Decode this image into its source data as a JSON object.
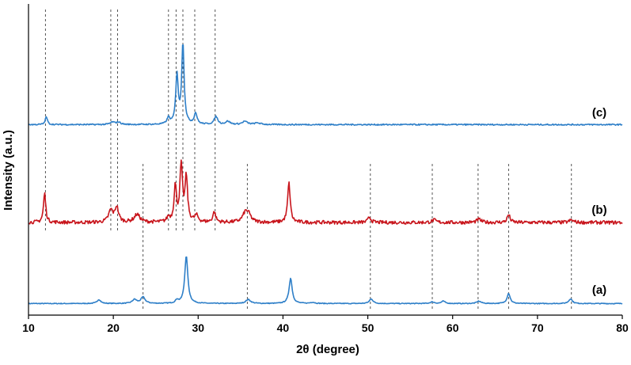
{
  "chart_data": {
    "type": "line",
    "title": "",
    "xlabel": "2θ (degree)",
    "ylabel": "Intensity (a.u.)",
    "xlim": [
      10,
      80
    ],
    "xticks": [
      10,
      20,
      30,
      40,
      50,
      60,
      70,
      80
    ],
    "yticks_shown": false,
    "grid": false,
    "legend": "none",
    "reference_lines": {
      "group_c_b": [
        12.0,
        19.7,
        20.5,
        26.5,
        27.4,
        28.2,
        29.6,
        32.0
      ],
      "group_b_a": [
        23.5,
        35.8,
        50.3,
        57.6,
        63.0,
        66.6,
        74.0
      ]
    },
    "series": [
      {
        "name": "(a)",
        "color": "#2e7fc8",
        "offset": 0,
        "baseline": 1.6,
        "noise": 0.5,
        "peaks": [
          [
            18.3,
            5,
            0.25
          ],
          [
            22.5,
            5,
            0.3
          ],
          [
            23.5,
            8,
            0.3
          ],
          [
            27.5,
            4,
            0.2
          ],
          [
            28.6,
            60,
            0.22
          ],
          [
            35.9,
            5,
            0.35
          ],
          [
            40.9,
            32,
            0.22
          ],
          [
            43.5,
            1.5,
            0.3
          ],
          [
            50.4,
            6,
            0.25
          ],
          [
            57.6,
            2,
            0.3
          ],
          [
            58.9,
            3,
            0.25
          ],
          [
            63.1,
            3,
            0.3
          ],
          [
            66.6,
            13,
            0.22
          ],
          [
            73.9,
            6,
            0.25
          ]
        ]
      },
      {
        "name": "(b)",
        "color": "#c8151c",
        "offset": 102,
        "baseline": 2,
        "noise": 2.2,
        "peaks": [
          [
            11.9,
            37,
            0.16
          ],
          [
            19.7,
            15,
            0.3
          ],
          [
            20.4,
            19,
            0.25
          ],
          [
            22.8,
            10,
            0.4
          ],
          [
            26.5,
            6,
            0.2
          ],
          [
            27.3,
            45,
            0.17
          ],
          [
            28.0,
            71,
            0.18
          ],
          [
            28.6,
            56,
            0.18
          ],
          [
            29.8,
            8,
            0.25
          ],
          [
            31.9,
            13,
            0.2
          ],
          [
            35.6,
            13,
            0.4
          ],
          [
            36.0,
            6,
            0.3
          ],
          [
            40.7,
            50,
            0.18
          ],
          [
            50.2,
            7,
            0.2
          ],
          [
            57.8,
            3,
            0.3
          ],
          [
            63.1,
            4,
            0.3
          ],
          [
            66.6,
            10,
            0.2
          ],
          [
            74.0,
            3,
            0.3
          ]
        ]
      },
      {
        "name": "(c)",
        "color": "#2e7fc8",
        "offset": 226,
        "baseline": 1.6,
        "noise": 0.8,
        "peaks": [
          [
            12.1,
            10,
            0.15
          ],
          [
            19.9,
            3,
            0.3
          ],
          [
            20.6,
            3,
            0.3
          ],
          [
            26.5,
            8,
            0.2
          ],
          [
            27.5,
            62,
            0.17
          ],
          [
            28.2,
            102,
            0.17
          ],
          [
            29.7,
            14,
            0.2
          ],
          [
            32.1,
            10,
            0.25
          ],
          [
            33.5,
            4,
            0.3
          ],
          [
            35.5,
            4,
            0.35
          ],
          [
            37.0,
            2,
            0.4
          ]
        ]
      }
    ]
  }
}
